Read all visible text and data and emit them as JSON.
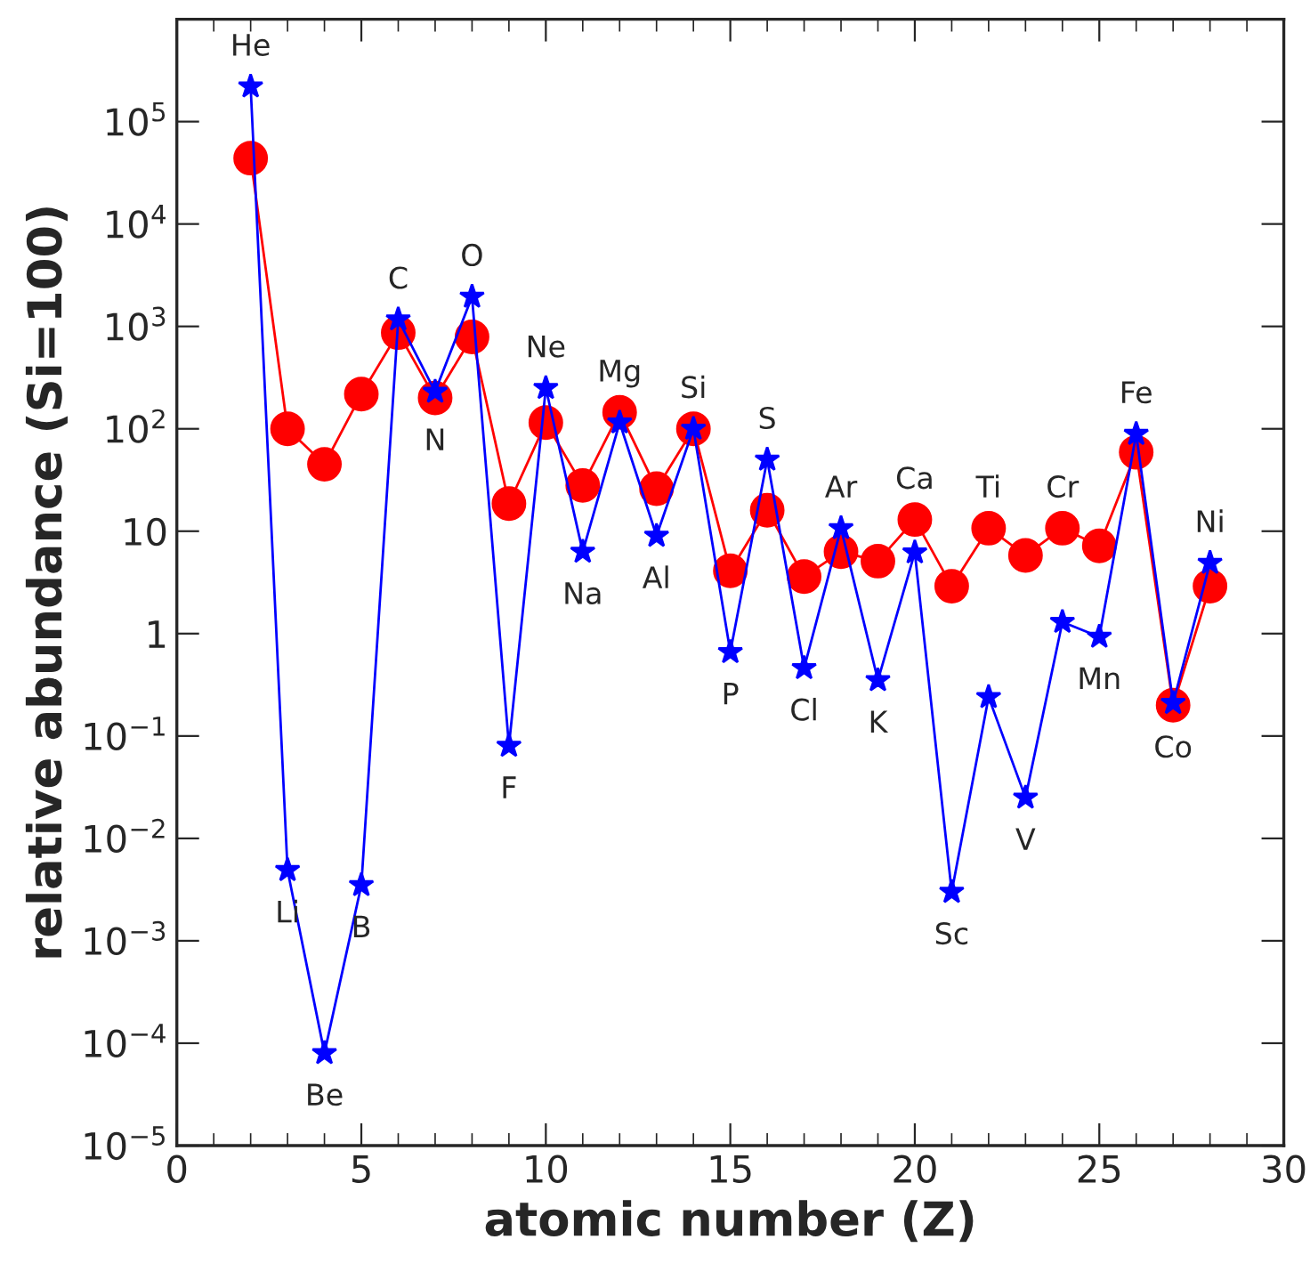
{
  "chart_data": {
    "type": "line",
    "xlabel": "atomic number (Z)",
    "ylabel": "relative abundance (Si=100)",
    "x": [
      2,
      3,
      4,
      5,
      6,
      7,
      8,
      9,
      10,
      11,
      12,
      13,
      14,
      15,
      16,
      17,
      18,
      19,
      20,
      21,
      22,
      23,
      24,
      25,
      26,
      27,
      28
    ],
    "series": [
      {
        "color": "#ff0000",
        "marker": "circle",
        "values": [
          44000,
          100,
          45,
          218,
          870,
          200,
          790,
          18.6,
          115,
          28,
          145,
          26,
          100,
          4.1,
          16,
          3.6,
          6.3,
          5.1,
          13,
          2.9,
          10.7,
          5.8,
          10.7,
          7.2,
          59,
          0.2,
          2.9
        ]
      },
      {
        "color": "#0000ff",
        "marker": "star",
        "values": [
          220000,
          0.0049,
          8e-05,
          0.0035,
          1170,
          230,
          1950,
          0.08,
          250,
          6.3,
          115,
          9,
          100,
          0.66,
          50,
          0.46,
          10.7,
          0.35,
          6.2,
          0.003,
          0.24,
          0.025,
          1.3,
          0.93,
          89,
          0.21,
          4.9
        ]
      }
    ],
    "log": "y",
    "xlim": [
      0,
      30
    ],
    "xticks": [
      0,
      5,
      10,
      15,
      20,
      25,
      30
    ],
    "ylim": [
      1e-05,
      1000000
    ],
    "yticks": [
      {
        "value": 1e-05,
        "label": "10$^{−5}$"
      },
      {
        "value": 0.0001,
        "label": "10$^{−4}$"
      },
      {
        "value": 0.001,
        "label": "10$^{−3}$"
      },
      {
        "value": 0.01,
        "label": "10$^{−2}$"
      },
      {
        "value": 0.1,
        "label": "10$^{−1}$"
      },
      1,
      10,
      {
        "value": 100,
        "label": "10$^{2}$"
      },
      {
        "value": 1000,
        "label": "10$^{3}$"
      },
      {
        "value": 10000,
        "label": "10$^{4}$"
      },
      {
        "value": 100000,
        "label": "10$^{5}$"
      }
    ],
    "grid": false,
    "legend": false,
    "annotations": [
      {
        "text": "He",
        "x": 2,
        "y": 220000
      },
      {
        "text": "Li",
        "x": 3,
        "y": 0.0049
      },
      {
        "text": "Be",
        "x": 4,
        "y": 8e-05
      },
      {
        "text": "B",
        "x": 5,
        "y": 0.0035
      },
      {
        "text": "C",
        "x": 6,
        "y": 1170
      },
      {
        "text": "N",
        "x": 7,
        "y": 230
      },
      {
        "text": "O",
        "x": 8,
        "y": 1950
      },
      {
        "text": "F",
        "x": 9,
        "y": 0.08
      },
      {
        "text": "Ne",
        "x": 10,
        "y": 250
      },
      {
        "text": "Na",
        "x": 11,
        "y": 6.3
      },
      {
        "text": "Mg",
        "x": 12,
        "y": 115
      },
      {
        "text": "Al",
        "x": 13,
        "y": 9
      },
      {
        "text": "Si",
        "x": 14,
        "y": 100
      },
      {
        "text": "P",
        "x": 15,
        "y": 0.66
      },
      {
        "text": "S",
        "x": 16,
        "y": 50
      },
      {
        "text": "Cl",
        "x": 17,
        "y": 0.46
      },
      {
        "text": "Ar",
        "x": 18,
        "y": 10.7
      },
      {
        "text": "K",
        "x": 19,
        "y": 0.35
      },
      {
        "text": "Ca",
        "x": 20,
        "y": 13
      },
      {
        "text": "Sc",
        "x": 21,
        "y": 0.003
      },
      {
        "text": "Ti",
        "x": 22,
        "y": 10.7
      },
      {
        "text": "V",
        "x": 23,
        "y": 0.025
      },
      {
        "text": "Cr",
        "x": 24,
        "y": 10.7
      },
      {
        "text": "Mn",
        "x": 25,
        "y": 0.93
      },
      {
        "text": "Fe",
        "x": 26,
        "y": 89
      },
      {
        "text": "Co",
        "x": 27,
        "y": 0.2
      },
      {
        "text": "Ni",
        "x": 28,
        "y": 4.9
      }
    ]
  }
}
